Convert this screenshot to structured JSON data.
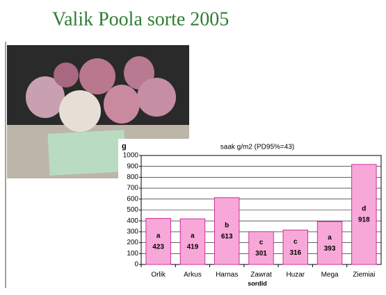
{
  "title": "Valik Poola sorte 2005",
  "chart_data": {
    "type": "bar",
    "title": "saak g/m2 (PD95%=43)",
    "y_label": "g",
    "x_label": "sordid",
    "categories": [
      "Orlik",
      "Arkus",
      "Harnas",
      "Zawrat",
      "Huzar",
      "Mega",
      "Ziemiai"
    ],
    "values": [
      423,
      419,
      613,
      301,
      316,
      393,
      918
    ],
    "groups": [
      "a",
      "a",
      "b",
      "c",
      "c",
      "a",
      "d"
    ],
    "color": "#f7a8d8",
    "edge_color": "#d0309a",
    "ylim": [
      0,
      1000
    ],
    "yticks": [
      0,
      100,
      200,
      300,
      400,
      500,
      600,
      700,
      800,
      900,
      1000
    ],
    "grid": true
  }
}
